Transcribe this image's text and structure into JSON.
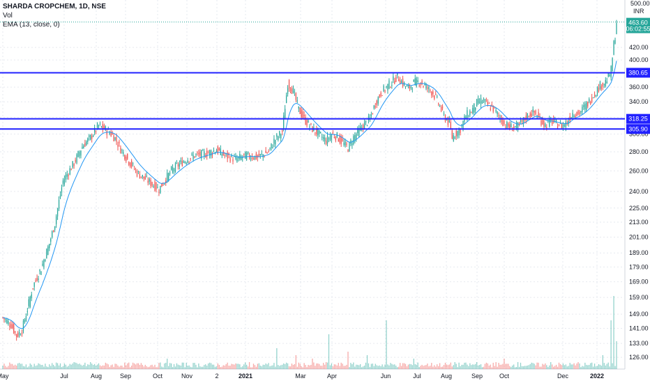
{
  "header": {
    "symbol": "SHARDA CROPCHEM, 1D, NSE",
    "volume_label": "Vol",
    "ema_label": "EMA (13, close, 0)"
  },
  "axis": {
    "currency": "INR",
    "top_value": "500.00",
    "y_ticks": [
      420.0,
      400.0,
      380.0,
      360.0,
      340.0,
      320.0,
      300.0,
      280.0,
      260.0,
      240.0,
      225.0,
      213.0,
      201.0,
      189.0,
      179.0,
      169.0,
      159.0,
      149.0,
      141.0,
      133.0,
      126.0
    ],
    "x_ticks": [
      "May",
      "Jul",
      "Aug",
      "Sep",
      "Oct",
      "Nov",
      "2",
      "2021",
      "Mar",
      "Apr",
      "Jun",
      "Jul",
      "Aug",
      "Sep",
      "Oct",
      "Dec",
      "2022"
    ]
  },
  "price_tag": {
    "value": "463.60",
    "countdown": "06:02:55"
  },
  "levels": [
    {
      "label": "380.65",
      "value": 380.65
    },
    {
      "label": "318.25",
      "value": 318.25
    },
    {
      "label": "305.90",
      "value": 305.9
    }
  ],
  "colors": {
    "up": "#26a69a",
    "down": "#ef5350",
    "level": "#2121ff",
    "ema": "#2196f3",
    "grid": "#e6e9ef"
  },
  "chart_data": {
    "type": "candlestick",
    "scale": "log",
    "ylim": [
      122,
      505
    ],
    "series": [
      {
        "name": "price",
        "description": "daily close path (anchors)",
        "anchors": [
          [
            0,
            147
          ],
          [
            6,
            143
          ],
          [
            10,
            137
          ],
          [
            14,
            140
          ],
          [
            18,
            152
          ],
          [
            22,
            166
          ],
          [
            28,
            178
          ],
          [
            34,
            196
          ],
          [
            38,
            212
          ],
          [
            44,
            250
          ],
          [
            52,
            268
          ],
          [
            58,
            286
          ],
          [
            64,
            296
          ],
          [
            70,
            310
          ],
          [
            74,
            306
          ],
          [
            78,
            302
          ],
          [
            82,
            295
          ],
          [
            86,
            283
          ],
          [
            92,
            270
          ],
          [
            98,
            258
          ],
          [
            104,
            252
          ],
          [
            110,
            246
          ],
          [
            114,
            242
          ],
          [
            118,
            250
          ],
          [
            124,
            262
          ],
          [
            132,
            270
          ],
          [
            140,
            276
          ],
          [
            148,
            278
          ],
          [
            156,
            282
          ],
          [
            162,
            276
          ],
          [
            170,
            272
          ],
          [
            178,
            276
          ],
          [
            186,
            274
          ],
          [
            194,
            280
          ],
          [
            198,
            292
          ],
          [
            204,
            303
          ],
          [
            208,
            365
          ],
          [
            212,
            354
          ],
          [
            216,
            330
          ],
          [
            220,
            318
          ],
          [
            226,
            306
          ],
          [
            232,
            298
          ],
          [
            236,
            292
          ],
          [
            240,
            300
          ],
          [
            244,
            297
          ],
          [
            248,
            290
          ],
          [
            252,
            284
          ],
          [
            256,
            296
          ],
          [
            262,
            308
          ],
          [
            268,
            318
          ],
          [
            272,
            338
          ],
          [
            276,
            352
          ],
          [
            280,
            360
          ],
          [
            284,
            367
          ],
          [
            288,
            375
          ],
          [
            292,
            365
          ],
          [
            296,
            358
          ],
          [
            300,
            366
          ],
          [
            304,
            368
          ],
          [
            308,
            362
          ],
          [
            314,
            352
          ],
          [
            318,
            338
          ],
          [
            322,
            322
          ],
          [
            326,
            312
          ],
          [
            328,
            296
          ],
          [
            330,
            300
          ],
          [
            334,
            306
          ],
          [
            338,
            322
          ],
          [
            342,
            328
          ],
          [
            346,
            338
          ],
          [
            350,
            342
          ],
          [
            354,
            336
          ],
          [
            358,
            331
          ],
          [
            362,
            322
          ],
          [
            366,
            312
          ],
          [
            370,
            308
          ],
          [
            376,
            309
          ],
          [
            380,
            316
          ],
          [
            384,
            324
          ],
          [
            388,
            326
          ],
          [
            392,
            318
          ],
          [
            396,
            310
          ],
          [
            400,
            316
          ],
          [
            404,
            312
          ],
          [
            408,
            310
          ],
          [
            412,
            314
          ],
          [
            416,
            326
          ],
          [
            420,
            324
          ],
          [
            424,
            332
          ],
          [
            428,
            340
          ],
          [
            432,
            352
          ],
          [
            436,
            362
          ],
          [
            440,
            368
          ],
          [
            442,
            374
          ],
          [
            444,
            384
          ],
          [
            446,
            425
          ],
          [
            447,
            440
          ],
          [
            448,
            463.6
          ]
        ]
      },
      {
        "name": "volume",
        "description": "daily volume spikes (relative)",
        "spikes": [
          [
            0,
            1
          ],
          [
            52,
            2
          ],
          [
            64,
            2
          ],
          [
            94,
            1
          ],
          [
            120,
            3
          ],
          [
            130,
            1
          ],
          [
            162,
            1
          ],
          [
            180,
            2
          ],
          [
            188,
            1
          ],
          [
            200,
            6
          ],
          [
            214,
            4
          ],
          [
            226,
            3
          ],
          [
            236,
            2
          ],
          [
            238,
            10
          ],
          [
            252,
            5
          ],
          [
            266,
            4
          ],
          [
            280,
            14
          ],
          [
            300,
            3
          ],
          [
            330,
            2
          ],
          [
            346,
            2
          ],
          [
            360,
            2
          ],
          [
            366,
            3
          ],
          [
            376,
            2
          ],
          [
            400,
            2
          ],
          [
            420,
            2
          ],
          [
            438,
            4
          ],
          [
            444,
            14
          ],
          [
            446,
            21
          ],
          [
            448,
            8
          ]
        ]
      }
    ]
  }
}
